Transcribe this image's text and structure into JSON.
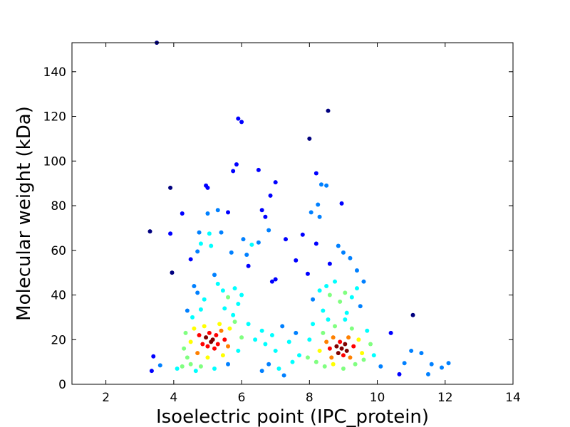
{
  "chart_data": {
    "type": "scatter",
    "title": "",
    "xlabel": "Isoelectric point (IPC_protein)",
    "ylabel": "Molecular weight (kDa)",
    "xlim": [
      1,
      14
    ],
    "ylim": [
      0,
      153
    ],
    "xticks": [
      2,
      4,
      6,
      8,
      10,
      12,
      14
    ],
    "yticks": [
      0,
      20,
      40,
      60,
      80,
      100,
      120,
      140
    ],
    "grid": false,
    "legend": "none",
    "color_encoding": "point density (jet colormap)",
    "colormap": [
      "#00007f",
      "#0000ff",
      "#0080ff",
      "#00ffff",
      "#80ff80",
      "#ffff00",
      "#ff8000",
      "#ff0000",
      "#7f0000"
    ],
    "clusters": [
      {
        "x_center": 5.1,
        "y_center": 20,
        "note": "dense acidic cluster"
      },
      {
        "x_center": 8.9,
        "y_center": 17,
        "note": "dense basic cluster"
      }
    ],
    "points": [
      [
        3.3,
        68.5
      ],
      [
        3.4,
        12.5
      ],
      [
        3.5,
        153
      ],
      [
        3.9,
        88
      ],
      [
        3.9,
        67.5
      ],
      [
        3.95,
        50
      ],
      [
        4.25,
        76.5
      ],
      [
        4.5,
        56
      ],
      [
        4.7,
        59.5
      ],
      [
        4.75,
        68
      ],
      [
        4.8,
        63
      ],
      [
        4.95,
        89
      ],
      [
        5.0,
        88
      ],
      [
        5.0,
        76.5
      ],
      [
        5.05,
        67.5
      ],
      [
        5.1,
        62
      ],
      [
        5.3,
        78
      ],
      [
        5.4,
        68
      ],
      [
        5.6,
        77
      ],
      [
        5.7,
        59
      ],
      [
        5.75,
        95.5
      ],
      [
        5.85,
        98.5
      ],
      [
        5.9,
        119
      ],
      [
        6.0,
        117.5
      ],
      [
        6.05,
        65
      ],
      [
        6.15,
        58
      ],
      [
        6.2,
        53
      ],
      [
        6.3,
        62.5
      ],
      [
        6.5,
        96
      ],
      [
        6.5,
        63.5
      ],
      [
        6.6,
        78
      ],
      [
        6.7,
        75
      ],
      [
        6.8,
        69
      ],
      [
        6.85,
        84.5
      ],
      [
        6.9,
        46
      ],
      [
        7.0,
        90.5
      ],
      [
        7.0,
        47
      ],
      [
        7.3,
        65
      ],
      [
        7.6,
        55.5
      ],
      [
        7.8,
        67
      ],
      [
        7.95,
        49.5
      ],
      [
        8.0,
        110
      ],
      [
        8.05,
        77
      ],
      [
        8.2,
        63
      ],
      [
        8.2,
        94.5
      ],
      [
        8.25,
        80.5
      ],
      [
        8.3,
        75
      ],
      [
        8.35,
        89.5
      ],
      [
        8.5,
        89
      ],
      [
        8.55,
        122.5
      ],
      [
        8.6,
        54
      ],
      [
        8.85,
        62
      ],
      [
        8.95,
        81
      ],
      [
        9.0,
        59
      ],
      [
        9.2,
        56.5
      ],
      [
        9.4,
        51
      ],
      [
        11.05,
        31
      ],
      [
        9.6,
        46
      ],
      [
        3.35,
        6
      ],
      [
        3.6,
        8.5
      ],
      [
        4.1,
        7
      ],
      [
        4.25,
        8
      ],
      [
        10.65,
        4.5
      ],
      [
        11.5,
        4.5
      ],
      [
        12.1,
        9.5
      ],
      [
        11.9,
        7.5
      ],
      [
        11.6,
        9
      ],
      [
        11.3,
        14
      ],
      [
        11.0,
        15
      ],
      [
        10.4,
        23
      ],
      [
        10.8,
        9.5
      ],
      [
        4.4,
        33
      ],
      [
        4.6,
        44
      ],
      [
        4.7,
        41
      ],
      [
        4.9,
        38
      ],
      [
        5.2,
        49
      ],
      [
        5.3,
        45
      ],
      [
        5.45,
        42
      ],
      [
        5.6,
        39
      ],
      [
        5.8,
        43
      ],
      [
        5.9,
        36
      ],
      [
        6.0,
        40
      ],
      [
        4.55,
        30
      ],
      [
        4.8,
        33.5
      ],
      [
        5.5,
        34
      ],
      [
        5.75,
        31
      ],
      [
        8.1,
        38
      ],
      [
        8.3,
        42
      ],
      [
        8.5,
        44
      ],
      [
        8.6,
        40
      ],
      [
        8.75,
        46
      ],
      [
        8.9,
        37
      ],
      [
        9.05,
        41
      ],
      [
        9.25,
        39
      ],
      [
        9.4,
        43
      ],
      [
        9.5,
        35
      ],
      [
        8.4,
        33
      ],
      [
        9.1,
        32
      ],
      [
        6.2,
        27
      ],
      [
        6.4,
        20
      ],
      [
        6.6,
        24
      ],
      [
        6.7,
        18
      ],
      [
        6.9,
        22
      ],
      [
        7.0,
        15
      ],
      [
        7.2,
        26
      ],
      [
        7.4,
        19
      ],
      [
        7.6,
        23
      ],
      [
        7.7,
        13
      ],
      [
        7.5,
        10
      ],
      [
        7.1,
        7
      ],
      [
        6.8,
        9
      ],
      [
        6.6,
        6
      ],
      [
        7.25,
        4
      ],
      [
        4.6,
        25
      ],
      [
        4.75,
        22
      ],
      [
        4.85,
        18
      ],
      [
        4.95,
        21
      ],
      [
        5.0,
        17
      ],
      [
        5.05,
        23
      ],
      [
        5.1,
        19
      ],
      [
        5.15,
        20
      ],
      [
        5.2,
        16
      ],
      [
        5.25,
        22
      ],
      [
        5.3,
        18
      ],
      [
        5.4,
        24
      ],
      [
        5.5,
        20
      ],
      [
        5.6,
        17
      ],
      [
        4.9,
        26
      ],
      [
        5.35,
        27
      ],
      [
        4.7,
        14
      ],
      [
        5.0,
        12
      ],
      [
        5.45,
        13
      ],
      [
        5.65,
        25
      ],
      [
        4.5,
        19
      ],
      [
        4.4,
        12
      ],
      [
        4.3,
        16
      ],
      [
        4.5,
        9
      ],
      [
        4.8,
        8
      ],
      [
        5.2,
        7
      ],
      [
        5.6,
        9
      ],
      [
        5.9,
        15
      ],
      [
        6.0,
        21
      ],
      [
        4.35,
        23
      ],
      [
        5.8,
        28
      ],
      [
        4.65,
        6
      ],
      [
        8.5,
        19
      ],
      [
        8.6,
        16
      ],
      [
        8.7,
        21
      ],
      [
        8.8,
        17
      ],
      [
        8.85,
        14
      ],
      [
        8.9,
        19
      ],
      [
        8.95,
        16
      ],
      [
        9.0,
        13
      ],
      [
        9.05,
        18
      ],
      [
        9.1,
        15
      ],
      [
        9.15,
        21
      ],
      [
        9.2,
        12
      ],
      [
        9.3,
        17
      ],
      [
        8.65,
        12
      ],
      [
        8.4,
        23
      ],
      [
        8.75,
        26
      ],
      [
        9.25,
        25
      ],
      [
        9.45,
        20
      ],
      [
        9.55,
        14
      ],
      [
        8.3,
        15
      ],
      [
        8.2,
        10
      ],
      [
        8.45,
        8
      ],
      [
        8.7,
        9
      ],
      [
        9.0,
        7
      ],
      [
        9.35,
        9
      ],
      [
        9.6,
        11
      ],
      [
        9.8,
        18
      ],
      [
        8.0,
        20
      ],
      [
        8.1,
        27
      ],
      [
        9.9,
        13
      ],
      [
        10.1,
        8
      ],
      [
        7.95,
        12
      ],
      [
        9.7,
        24
      ],
      [
        8.55,
        29
      ],
      [
        9.05,
        29
      ]
    ]
  }
}
